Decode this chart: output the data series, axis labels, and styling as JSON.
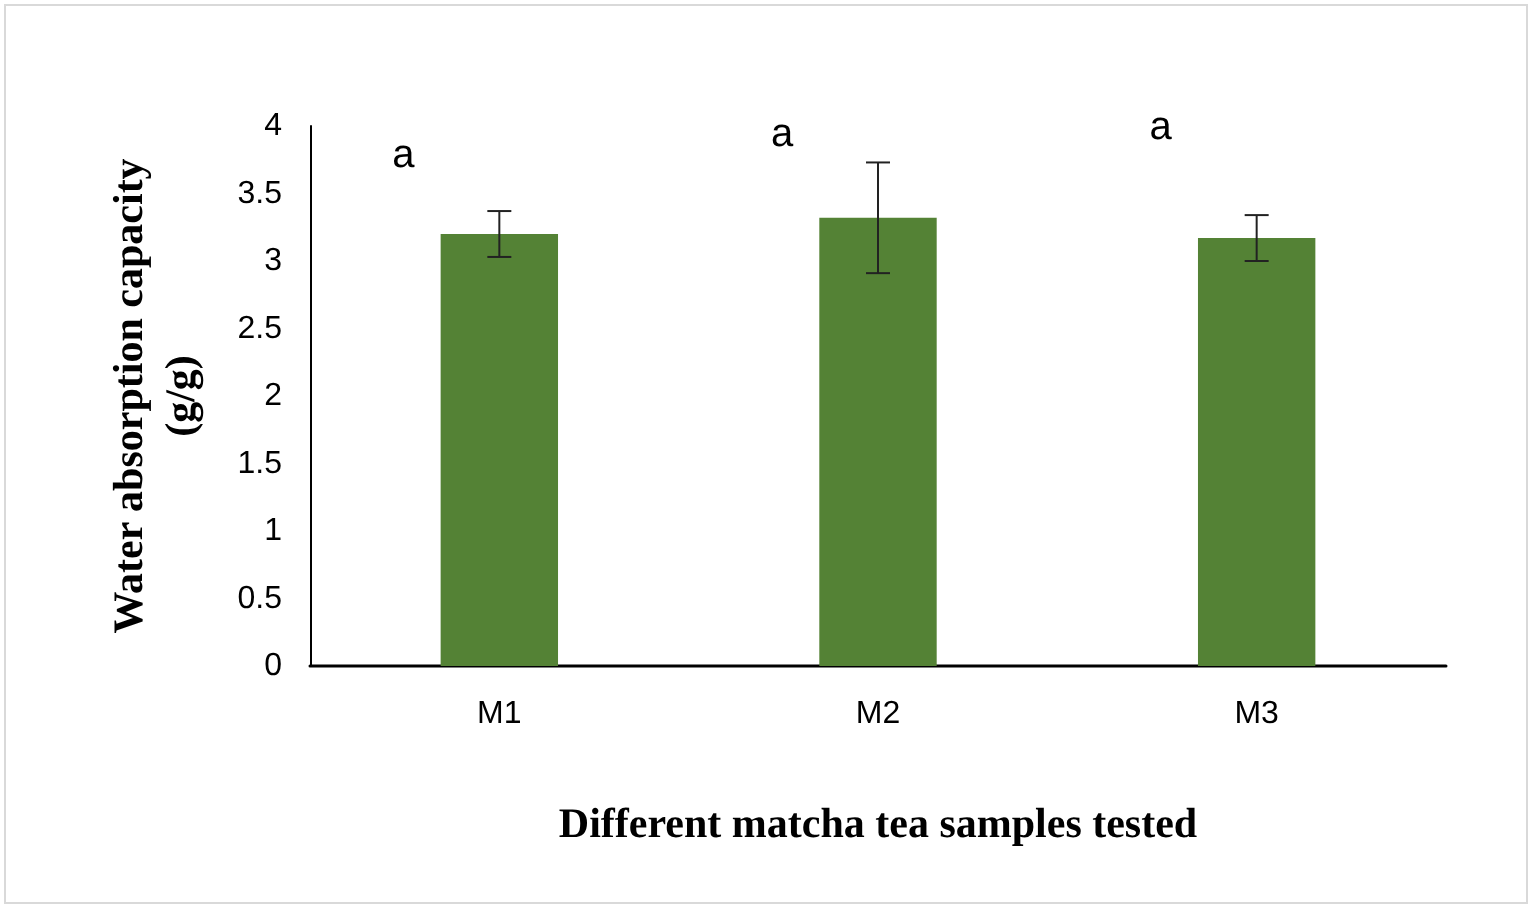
{
  "chart_data": {
    "type": "bar",
    "xlabel": "Different matcha tea samples tested",
    "ylabel": "Water absorption capacity (g/g)",
    "categories": [
      "M1",
      "M2",
      "M3"
    ],
    "values": [
      3.2,
      3.32,
      3.17
    ],
    "color": "#548235",
    "errors": [
      0.17,
      0.41,
      0.17
    ],
    "ylim": [
      0,
      4
    ],
    "yticks": [
      0,
      0.5,
      1,
      1.5,
      2,
      2.5,
      3,
      3.5,
      4
    ],
    "grid": false,
    "annotations": [
      "a",
      "a",
      "a"
    ]
  }
}
